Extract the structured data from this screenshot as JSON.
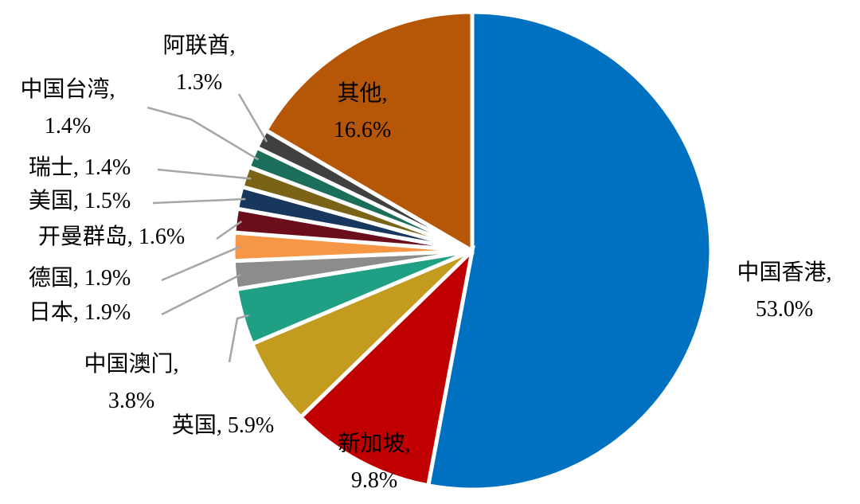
{
  "chart_data": {
    "type": "pie",
    "categories": [
      "中国香港,",
      "新加坡,",
      "英国,",
      "中国澳门,",
      "日本,",
      "德国,",
      "开曼群岛,",
      "美国,",
      "瑞士,",
      "中国台湾,",
      "阿联酋,",
      "其他,"
    ],
    "values": [
      53.0,
      9.8,
      5.9,
      3.8,
      1.9,
      1.9,
      1.6,
      1.5,
      1.4,
      1.4,
      1.3,
      16.6
    ],
    "value_labels": [
      "53.0%",
      "9.8%",
      "5.9%",
      "3.8%",
      "1.9%",
      "1.9%",
      "1.6%",
      "1.5%",
      "1.4%",
      "1.4%",
      "1.3%",
      "16.6%"
    ],
    "colors": [
      "#0070c0",
      "#c00000",
      "#c29b1f",
      "#1fa085",
      "#8c8c8c",
      "#f79646",
      "#6b0d1a",
      "#17375e",
      "#7a6316",
      "#1b6e5a",
      "#404040",
      "#b65708"
    ]
  }
}
